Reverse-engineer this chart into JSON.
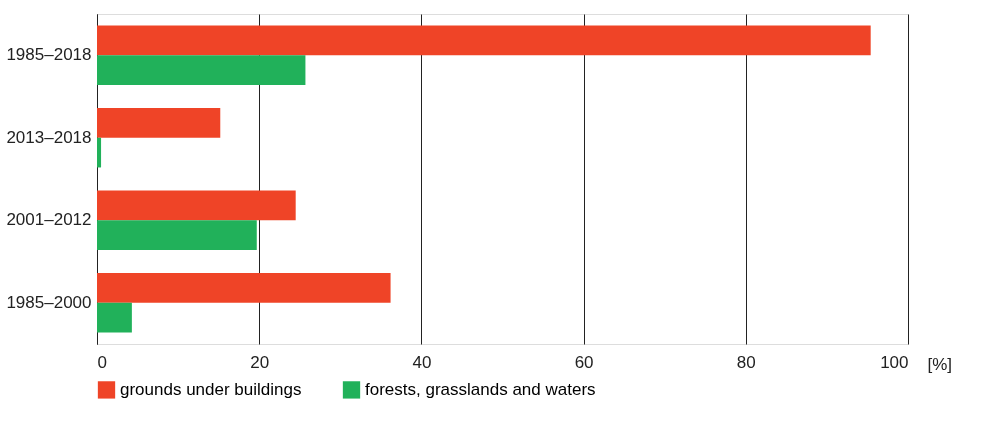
{
  "chart_data": {
    "type": "bar",
    "orientation": "horizontal",
    "xlabel": "[%]",
    "categories": [
      "1985–2018",
      "2013–2018",
      "2001–2012",
      "1985–2000"
    ],
    "series": [
      {
        "name": "grounds under buildings",
        "color": "#ef4427",
        "values": [
          95.4,
          15.2,
          24.5,
          36.2
        ]
      },
      {
        "name": "forests, grasslands and waters",
        "color": "#21b15a",
        "values": [
          25.7,
          0.5,
          19.7,
          4.3
        ]
      }
    ],
    "xlim": [
      0,
      100
    ],
    "xticks": [
      0,
      20,
      40,
      60,
      80,
      100
    ],
    "grid": "x",
    "legend": "bottom"
  }
}
